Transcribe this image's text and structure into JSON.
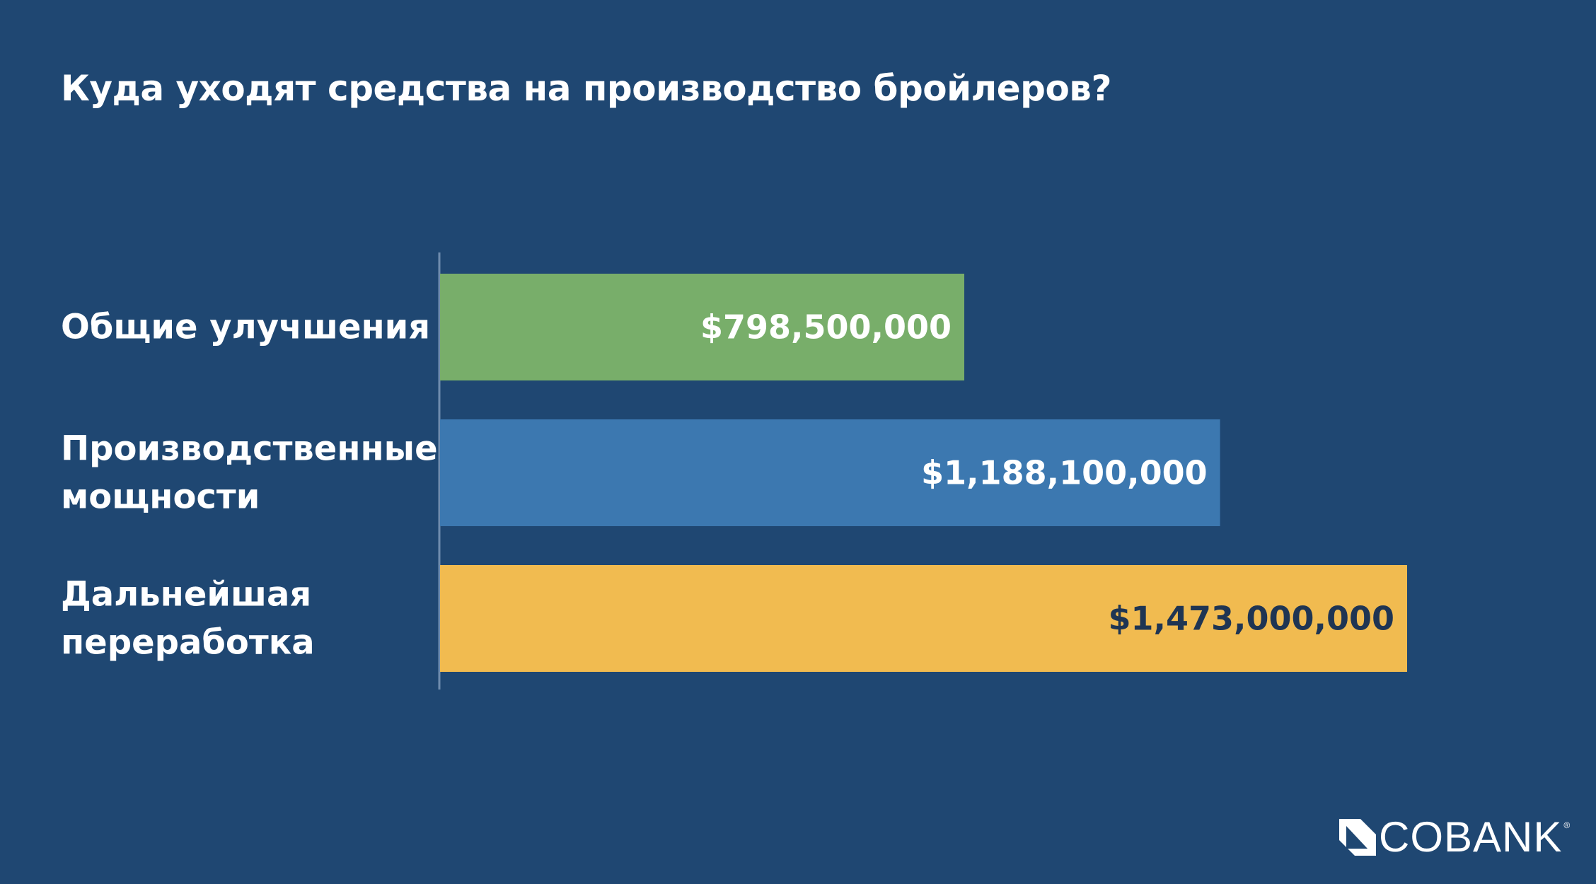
{
  "page": {
    "background": "#1F4772"
  },
  "chart_data": {
    "type": "bar",
    "orientation": "horizontal",
    "title": "Куда уходят средства на производство бройлеров?",
    "categories": [
      [
        "Общие улучшения"
      ],
      [
        "Производственные",
        "мощности"
      ],
      [
        "Дальнейшая",
        "переработка"
      ]
    ],
    "values": [
      798500000,
      1188100000,
      1473000000
    ],
    "value_labels": [
      "$798,500,000",
      "$1,188,100,000",
      "$1,473,000,000"
    ],
    "bar_colors": [
      "#78AE6A",
      "#3C78B0",
      "#F1BB50"
    ],
    "value_label_colors": [
      "#FFFFFF",
      "#FFFFFF",
      "#1F3553"
    ],
    "axis_color": "#6F8CAE",
    "xlabel": "",
    "ylabel": "",
    "grid": false,
    "legend": "none"
  },
  "brand": {
    "name": "COBANK",
    "registered": "®",
    "icon": "cobank-logo-icon"
  }
}
